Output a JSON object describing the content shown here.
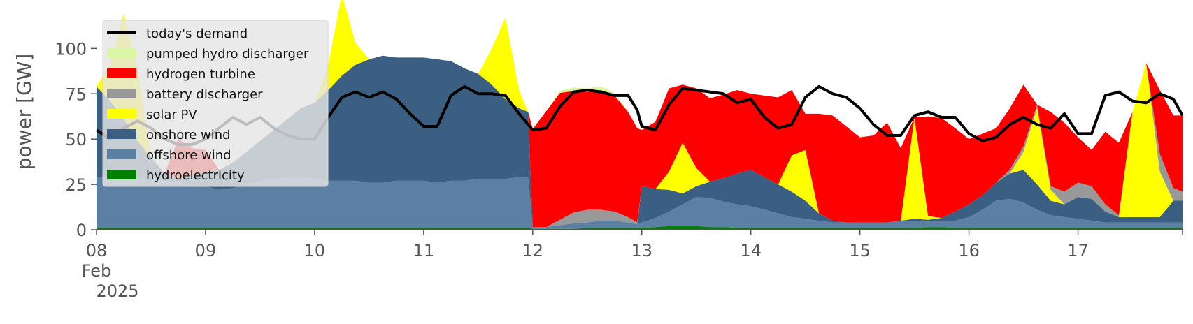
{
  "chart_data": {
    "type": "area",
    "stacked": true,
    "ylabel": "power [GW]",
    "xlabel": "",
    "ylim": [
      0,
      119
    ],
    "yticks": [
      0,
      25,
      50,
      75,
      100
    ],
    "xticks": [
      {
        "x": 0,
        "label": "08",
        "sub1": "Feb",
        "sub2": "2025"
      },
      {
        "x": 24,
        "label": "09"
      },
      {
        "x": 48,
        "label": "10"
      },
      {
        "x": 72,
        "label": "11"
      },
      {
        "x": 96,
        "label": "12"
      },
      {
        "x": 120,
        "label": "13"
      },
      {
        "x": 144,
        "label": "14"
      },
      {
        "x": 168,
        "label": "15"
      },
      {
        "x": 192,
        "label": "16"
      },
      {
        "x": 216,
        "label": "17"
      }
    ],
    "x_hours": [
      0,
      3,
      6,
      9,
      12,
      15,
      18,
      21,
      24,
      27,
      30,
      33,
      36,
      39,
      42,
      45,
      48,
      51,
      54,
      57,
      60,
      63,
      66,
      69,
      72,
      75,
      78,
      81,
      84,
      87,
      90,
      93,
      95,
      96,
      99,
      102,
      105,
      108,
      111,
      114,
      117,
      119,
      120,
      123,
      126,
      129,
      132,
      135,
      138,
      141,
      144,
      147,
      150,
      153,
      156,
      159,
      162,
      165,
      168,
      171,
      174,
      177,
      180,
      183,
      186,
      189,
      192,
      195,
      198,
      201,
      204,
      207,
      210,
      213,
      216,
      219,
      222,
      225,
      228,
      231,
      234,
      237,
      239
    ],
    "x_note_start": "2025-02-08",
    "legend_position": "upper left",
    "grid": false,
    "series": [
      {
        "name": "hydroelectricity",
        "color": "#008000",
        "values": [
          1,
          1,
          1,
          1,
          1,
          1,
          1,
          1,
          1,
          1,
          1,
          1,
          1,
          1,
          1,
          1,
          1,
          1,
          1,
          1,
          1,
          1,
          1,
          1,
          1,
          1,
          1,
          1,
          1,
          1,
          1,
          1,
          1,
          0.5,
          0.5,
          0.5,
          0.5,
          1,
          1,
          1,
          1,
          1,
          1,
          1.5,
          2,
          2,
          2,
          1.5,
          1.5,
          1,
          1,
          1,
          1,
          1,
          1,
          1,
          1,
          1,
          1,
          1,
          1,
          1,
          1,
          1.5,
          1.5,
          1,
          1,
          1,
          1,
          1,
          1,
          1,
          1,
          1,
          1,
          1,
          1,
          1,
          1,
          1,
          1,
          1,
          1
        ]
      },
      {
        "name": "offshore wind",
        "color": "#5b80a3",
        "values": [
          28,
          28,
          28,
          28,
          27,
          26,
          25,
          24,
          23,
          21,
          22,
          24,
          26,
          27,
          28,
          28,
          27,
          26,
          26,
          26,
          25,
          25,
          26,
          26,
          26,
          25,
          26,
          26,
          27,
          27,
          27,
          28,
          28,
          1,
          1,
          2,
          3,
          3,
          4,
          4,
          3,
          2,
          3,
          5,
          8,
          12,
          16,
          16,
          14,
          13,
          12,
          10,
          8,
          6,
          5,
          4,
          3,
          3,
          3,
          3,
          3,
          4,
          4,
          3,
          3,
          4,
          6,
          10,
          15,
          16,
          14,
          10,
          7,
          6,
          5,
          4,
          3,
          3,
          3,
          3,
          3,
          3,
          3
        ]
      },
      {
        "name": "onshore wind",
        "color": "#3a5f82",
        "values": [
          50,
          42,
          32,
          20,
          12,
          4,
          2,
          5,
          8,
          11,
          14,
          18,
          22,
          27,
          32,
          38,
          42,
          50,
          58,
          64,
          68,
          70,
          68,
          68,
          68,
          68,
          66,
          62,
          58,
          52,
          44,
          38,
          36,
          0,
          0,
          0,
          0,
          0,
          0,
          0,
          0,
          0,
          20,
          16,
          12,
          6,
          6,
          9,
          13,
          17,
          20,
          18,
          16,
          14,
          10,
          4,
          1,
          0,
          0,
          0,
          0,
          0,
          1,
          1,
          2,
          5,
          7,
          8,
          10,
          14,
          18,
          14,
          8,
          7,
          12,
          12,
          6,
          3,
          3,
          3,
          3,
          12,
          12
        ]
      },
      {
        "name": "solar PV",
        "color": "#ffff00",
        "values": [
          0,
          20,
          58,
          40,
          0,
          0,
          0,
          0,
          0,
          0,
          0,
          0,
          0,
          0,
          0,
          0,
          0,
          14,
          45,
          12,
          0,
          0,
          0,
          0,
          0,
          0,
          0,
          0,
          0,
          20,
          45,
          10,
          0,
          0,
          0,
          0,
          0,
          0,
          0,
          0,
          0,
          0,
          0,
          0,
          10,
          28,
          10,
          0,
          0,
          0,
          0,
          0,
          0,
          20,
          28,
          0,
          0,
          0,
          0,
          0,
          0,
          0,
          56,
          2,
          0,
          0,
          0,
          0,
          0,
          0,
          10,
          42,
          6,
          0,
          0,
          0,
          0,
          0,
          58,
          85,
          25,
          0,
          0
        ]
      },
      {
        "name": "battery discharger",
        "color": "#999999",
        "values": [
          0,
          0,
          0,
          0,
          0,
          0,
          0,
          0,
          0,
          0,
          0,
          0,
          0,
          0,
          0,
          0,
          0,
          0,
          0,
          0,
          0,
          0,
          0,
          0,
          0,
          0,
          0,
          0,
          0,
          0,
          0,
          0,
          0,
          0,
          0,
          3,
          6,
          7,
          6,
          5,
          3,
          1,
          0,
          0,
          0,
          0,
          0,
          0,
          0,
          0,
          0,
          0,
          0,
          0,
          0,
          0,
          0,
          0,
          0,
          0,
          0,
          0,
          0,
          0,
          0,
          0,
          0,
          0,
          0,
          2,
          3,
          2,
          2,
          7,
          8,
          7,
          4,
          1,
          0,
          0,
          10,
          7,
          5
        ]
      },
      {
        "name": "hydrogen turbine",
        "color": "#ff0000",
        "values": [
          0,
          0,
          0,
          0,
          0,
          0,
          22,
          15,
          12,
          0,
          0,
          0,
          0,
          0,
          0,
          0,
          0,
          0,
          0,
          0,
          0,
          0,
          0,
          0,
          0,
          0,
          0,
          0,
          0,
          0,
          0,
          0,
          0,
          54,
          64,
          70,
          67,
          65,
          66,
          64,
          58,
          52,
          31,
          37,
          46,
          32,
          44,
          46,
          46,
          46,
          42,
          45,
          48,
          36,
          20,
          55,
          58,
          53,
          47,
          48,
          55,
          40,
          0,
          55,
          55,
          46,
          36,
          34,
          30,
          34,
          34,
          0,
          41,
          38,
          25,
          20,
          40,
          40,
          0,
          0,
          35,
          40,
          42
        ]
      },
      {
        "name": "pumped hydro discharger",
        "color": "#d9f7a4",
        "values": [
          0,
          0,
          0,
          0,
          0,
          0,
          0,
          0,
          0,
          0,
          0,
          0,
          0,
          0,
          0,
          0,
          0,
          0,
          0,
          0,
          0,
          0,
          0,
          0,
          0,
          0,
          0,
          0,
          0,
          0,
          0,
          0,
          0,
          0,
          0,
          1,
          2,
          2,
          2,
          1.5,
          0,
          0,
          0,
          0,
          0,
          0,
          0,
          0,
          0,
          0,
          0,
          0,
          0,
          0,
          0,
          0,
          0,
          0,
          0,
          0,
          0,
          0,
          0,
          0,
          0,
          0,
          0,
          0,
          0,
          0,
          0,
          0,
          0,
          0,
          0,
          0,
          0,
          0,
          0,
          0,
          0,
          0,
          0
        ]
      }
    ],
    "demand": {
      "name": "today's demand",
      "color": "#000000",
      "values": [
        55,
        50,
        56,
        60,
        56,
        50,
        47,
        47,
        50,
        56,
        62,
        58,
        62,
        56,
        52,
        50,
        50,
        62,
        73,
        76,
        73,
        76,
        72,
        64,
        57,
        57,
        74,
        79,
        75,
        75,
        74,
        64,
        58,
        55,
        56,
        68,
        76,
        77,
        76,
        74,
        74,
        66,
        57,
        55,
        69,
        78,
        77,
        76,
        75,
        70,
        72,
        62,
        56,
        58,
        73,
        79,
        75,
        73,
        67,
        58,
        52,
        52,
        63,
        65,
        62,
        62,
        53,
        49,
        51,
        58,
        62,
        58,
        56,
        64,
        53,
        53,
        74,
        76,
        71,
        70,
        75,
        72,
        63
      ]
    }
  }
}
